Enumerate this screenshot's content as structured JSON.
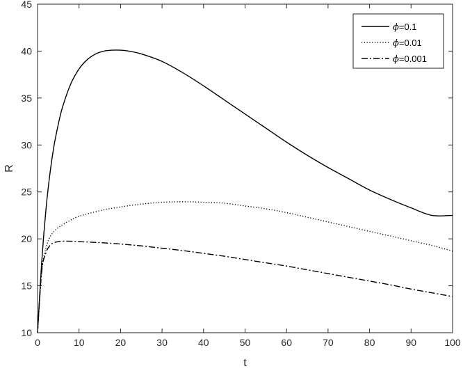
{
  "chart_data": {
    "type": "line",
    "title": "",
    "xlabel": "t",
    "ylabel": "R",
    "xlim": [
      0,
      100
    ],
    "ylim": [
      10,
      45
    ],
    "xticks": [
      0,
      10,
      20,
      30,
      40,
      50,
      60,
      70,
      80,
      90,
      100
    ],
    "yticks": [
      10,
      15,
      20,
      25,
      30,
      35,
      40,
      45
    ],
    "grid": false,
    "legend_position": "top-right",
    "series": [
      {
        "name": "ϕ=0.1",
        "symbol": "ϕ",
        "value_text": "=0.1",
        "style": "solid",
        "x": [
          0,
          1,
          2,
          3,
          4,
          5,
          6,
          8,
          10,
          12,
          14,
          16,
          18,
          20,
          22,
          25,
          30,
          35,
          40,
          45,
          50,
          55,
          60,
          65,
          70,
          75,
          80,
          85,
          90,
          95,
          100
        ],
        "y": [
          10,
          17.5,
          23,
          27,
          30,
          32.2,
          34,
          36.5,
          38.1,
          39.1,
          39.7,
          40.0,
          40.1,
          40.1,
          40.0,
          39.7,
          38.9,
          37.7,
          36.3,
          34.8,
          33.3,
          31.8,
          30.3,
          28.9,
          27.6,
          26.4,
          25.2,
          24.2,
          23.3,
          22.5,
          22.5
        ]
      },
      {
        "name": "ϕ=0.01",
        "symbol": "ϕ",
        "value_text": "=0.01",
        "style": "dotted",
        "x": [
          0,
          1,
          2,
          3,
          4,
          5,
          6,
          8,
          10,
          15,
          20,
          25,
          30,
          35,
          40,
          45,
          50,
          55,
          60,
          65,
          70,
          75,
          80,
          85,
          90,
          95,
          100
        ],
        "y": [
          10,
          16.5,
          19,
          20.2,
          20.8,
          21.2,
          21.5,
          22.0,
          22.4,
          23.0,
          23.4,
          23.7,
          23.9,
          23.95,
          23.9,
          23.8,
          23.5,
          23.2,
          22.8,
          22.3,
          21.8,
          21.3,
          20.8,
          20.3,
          19.8,
          19.3,
          18.7
        ]
      },
      {
        "name": "ϕ=0.001",
        "symbol": "ϕ",
        "value_text": "=0.001",
        "style": "dashdot",
        "x": [
          0,
          1,
          2,
          3,
          4,
          5,
          6,
          8,
          10,
          15,
          20,
          25,
          30,
          35,
          40,
          45,
          50,
          55,
          60,
          65,
          70,
          75,
          80,
          85,
          90,
          95,
          100
        ],
        "y": [
          10,
          16.5,
          18.5,
          19.3,
          19.6,
          19.7,
          19.75,
          19.75,
          19.7,
          19.6,
          19.45,
          19.25,
          19.0,
          18.75,
          18.45,
          18.15,
          17.8,
          17.45,
          17.1,
          16.7,
          16.3,
          15.9,
          15.5,
          15.1,
          14.65,
          14.25,
          13.85
        ]
      }
    ]
  }
}
